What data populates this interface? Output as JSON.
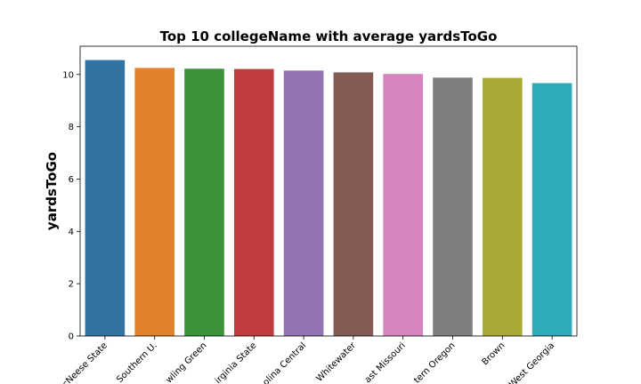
{
  "chart_data": {
    "type": "bar",
    "title": "Top 10 collegeName with average yardsToGo",
    "xlabel": "",
    "ylabel": "yardsToGo",
    "categories": [
      "McNeese State",
      "Southern U.",
      "Bowling Green",
      "Virginia State",
      "North Carolina Central",
      "Wisconsin-Whitewater",
      "Southeast Missouri",
      "Western Oregon",
      "Brown",
      "West Georgia"
    ],
    "category_tick_labels": [
      "cNeese State",
      "Southern U.",
      "wling Green",
      "irginia State",
      "olina Central",
      "Whitewater",
      "ast Missouri",
      "tern Oregon",
      "Brown",
      "West Georgia"
    ],
    "values": [
      10.55,
      10.25,
      10.22,
      10.21,
      10.15,
      10.08,
      10.02,
      9.88,
      9.87,
      9.67
    ],
    "colors": [
      "#3274a1",
      "#e1812c",
      "#3a923a",
      "#c03d3e",
      "#9372b2",
      "#845b53",
      "#d684bd",
      "#7f7f7f",
      "#a9aa35",
      "#2eabb8"
    ],
    "yticks": [
      0,
      2,
      4,
      6,
      8,
      10
    ],
    "ylim": [
      0,
      11.08
    ],
    "grid": false,
    "legend": "none"
  }
}
